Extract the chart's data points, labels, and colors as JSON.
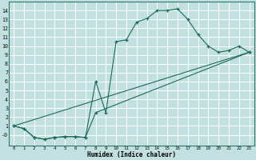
{
  "xlabel": "Humidex (Indice chaleur)",
  "bg_color": "#c2e0e0",
  "grid_color": "#ffffff",
  "line_color": "#1a6b5a",
  "xlim": [
    -0.5,
    23.5
  ],
  "ylim": [
    -1.2,
    15.0
  ],
  "xticks": [
    0,
    1,
    2,
    3,
    4,
    5,
    6,
    7,
    8,
    9,
    10,
    11,
    12,
    13,
    14,
    15,
    16,
    17,
    18,
    19,
    20,
    21,
    22,
    23
  ],
  "yticks": [
    0,
    1,
    2,
    3,
    4,
    5,
    6,
    7,
    8,
    9,
    10,
    11,
    12,
    13,
    14
  ],
  "ytick_labels": [
    "-0",
    "1",
    "2",
    "3",
    "4",
    "5",
    "6",
    "7",
    "8",
    "9",
    "10",
    "11",
    "12",
    "13",
    "14"
  ],
  "line1_x": [
    0,
    1,
    2,
    3,
    4,
    5,
    6,
    7,
    8,
    9,
    10,
    11,
    12,
    13,
    14,
    15,
    16,
    17,
    18,
    19,
    20,
    21,
    22,
    23
  ],
  "line1_y": [
    1.0,
    0.7,
    -0.3,
    -0.5,
    -0.3,
    -0.2,
    -0.2,
    -0.3,
    6.0,
    2.5,
    10.5,
    10.7,
    12.7,
    13.1,
    14.0,
    14.0,
    14.2,
    13.0,
    11.3,
    10.0,
    9.3,
    9.5,
    10.0,
    9.3
  ],
  "line2_x": [
    0,
    1,
    2,
    3,
    4,
    5,
    6,
    7,
    8,
    23
  ],
  "line2_y": [
    1.0,
    0.7,
    -0.3,
    -0.5,
    -0.3,
    -0.2,
    -0.2,
    -0.3,
    2.5,
    9.3
  ],
  "line3_x": [
    0,
    23
  ],
  "line3_y": [
    1.0,
    9.3
  ]
}
